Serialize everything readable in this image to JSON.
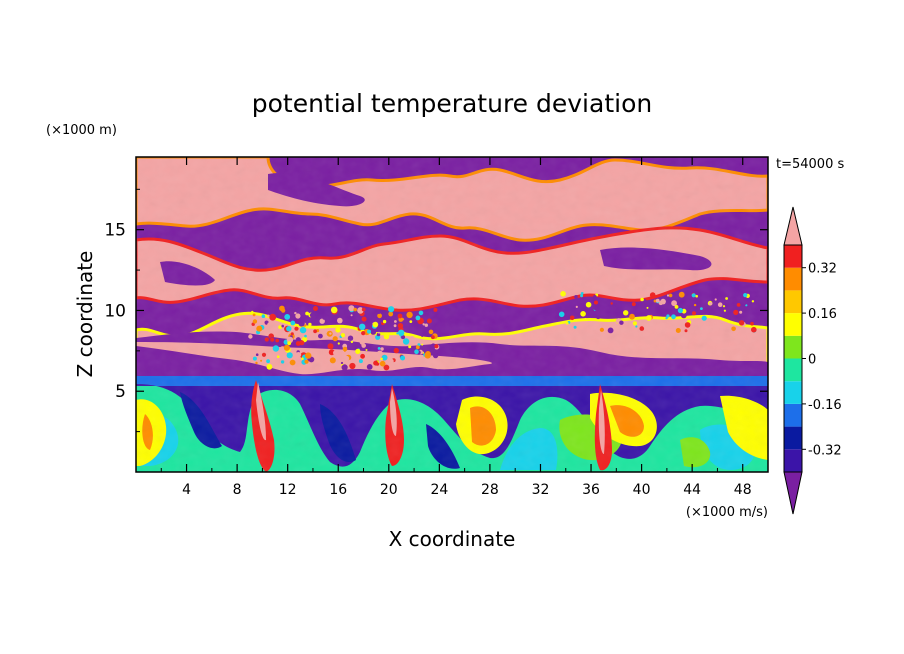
{
  "chart_data": {
    "type": "heatmap",
    "title": "potential temperature deviation",
    "xlabel": "X coordinate",
    "ylabel": "Z coordinate",
    "x_unit": "(×1000 m/s)",
    "y_unit": "(×1000 m)",
    "time_label": "t=54000 s",
    "xlim": [
      0,
      50
    ],
    "ylim": [
      0,
      19.5
    ],
    "x_ticks": [
      4,
      8,
      12,
      16,
      20,
      24,
      28,
      32,
      36,
      40,
      44,
      48
    ],
    "y_ticks": [
      5,
      10,
      15
    ],
    "colorbar": {
      "levels": [
        -0.4,
        -0.32,
        -0.24,
        -0.16,
        -0.08,
        0,
        0.08,
        0.16,
        0.24,
        0.32,
        0.4
      ],
      "labels": [
        "0.32",
        "0.16",
        "0",
        "-0.16",
        "-0.32"
      ],
      "label_values": [
        0.32,
        0.16,
        0,
        -0.16,
        -0.32
      ],
      "colors": [
        "#7a1fa2",
        "#3b14a8",
        "#0a1aa0",
        "#1d6fea",
        "#18d2ea",
        "#1ee6a0",
        "#7ee61d",
        "#ffff00",
        "#ffc800",
        "#ff8c00",
        "#f02020",
        "#f4a4a4"
      ],
      "extend": "both"
    },
    "field_description": [
      {
        "region": "z 0–6 (boundary layer)",
        "pattern": "turbulent mixed values from -0.32 to 0.4, plumes of high values near x=10, 20, 28, 37"
      },
      {
        "region": "z 6–20 (upper layer)",
        "pattern": "alternating bands of values above 0.4 and below -0.4 separated by thin gradient edges"
      }
    ]
  }
}
